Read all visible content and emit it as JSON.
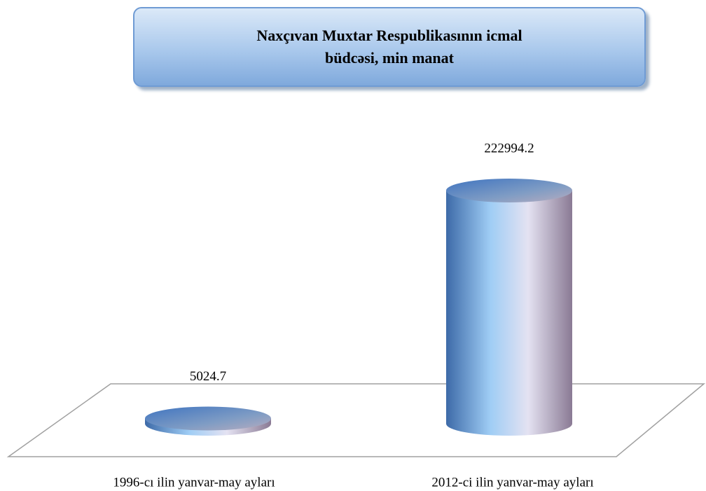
{
  "chart_data": {
    "type": "cylinder",
    "title": "Naxçıvan Muxtar Respublikasının icmal büdcəsi, min manat",
    "categories": [
      "1996-cı ilin yanvar-may ayları",
      "2012-ci ilin yanvar-may ayları"
    ],
    "values": [
      5024.7,
      222994.2
    ],
    "color": "#5b8fd0"
  }
}
